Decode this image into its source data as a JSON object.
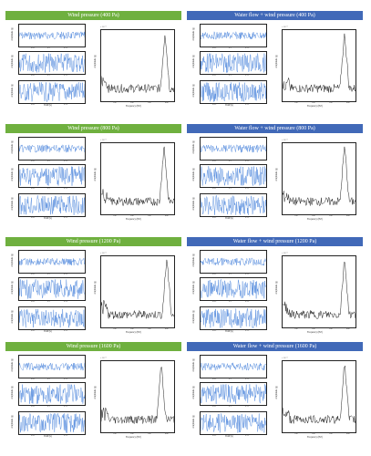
{
  "chart_data": [
    {
      "type": "line",
      "title": "Wind pressure (400 Pa)",
      "peak_frequency_hz": 350,
      "time_xticks": [
        "0.05",
        "0.1",
        "0.15"
      ],
      "time_xlabel": "Time (s)",
      "amp_ylabel": "Amplitude (g)",
      "spec_ylabel": "Amplitude (g)",
      "spec_xlabel": "Frequency (HZ)",
      "spec_xticks": [
        "100",
        "200",
        "300",
        "400"
      ],
      "spec_multiplier": "× 10⁻³"
    },
    {
      "type": "line",
      "title": "Water flow + wind pressure (400 Pa)",
      "peak_frequency_hz": 340,
      "time_xticks": [
        "0.05",
        "0.1",
        "0.15"
      ],
      "time_xlabel": "Time (s)",
      "amp_ylabel": "Amplitude (g)",
      "spec_ylabel": "Amplitude (g)",
      "spec_xlabel": "Frequency (HZ)",
      "spec_xticks": [
        "100",
        "200",
        "300",
        "400"
      ],
      "spec_multiplier": "× 10⁻³"
    },
    {
      "type": "line",
      "title": "Wind pressure (800 Pa)",
      "peak_frequency_hz": 345,
      "time_xticks": [
        "0.05",
        "0.1",
        "0.15"
      ],
      "time_xlabel": "Time (s)",
      "amp_ylabel": "Amplitude (g)",
      "spec_ylabel": "Amplitude (g)",
      "spec_xlabel": "Frequency (HZ)",
      "spec_xticks": [
        "100",
        "200",
        "300",
        "400"
      ],
      "spec_multiplier": "× 10⁻³"
    },
    {
      "type": "line",
      "title": "Water flow + wind pressure (800 Pa)",
      "peak_frequency_hz": 340,
      "time_xticks": [
        "0.05",
        "0.1",
        "0.15"
      ],
      "time_xlabel": "Time (s)",
      "amp_ylabel": "Amplitude (g)",
      "spec_ylabel": "Amplitude (g)",
      "spec_xlabel": "Frequency (HZ)",
      "spec_xticks": [
        "100",
        "200",
        "300",
        "400"
      ],
      "spec_multiplier": "× 10⁻³"
    },
    {
      "type": "line",
      "title": "Wind pressure (1200 Pa)",
      "peak_frequency_hz": 360,
      "time_xticks": [
        "0.05",
        "0.1",
        "0.15"
      ],
      "time_xlabel": "Time (s)",
      "amp_ylabel": "Amplitude (g)",
      "spec_ylabel": "Amplitude (g)",
      "spec_xlabel": "Frequency (HZ)",
      "spec_xticks": [
        "100",
        "200",
        "300",
        "400"
      ],
      "spec_multiplier": "× 10⁻³"
    },
    {
      "type": "line",
      "title": "Water flow + wind pressure (1200 Pa)",
      "peak_frequency_hz": 340,
      "time_xticks": [
        "0.05",
        "0.1",
        "0.15"
      ],
      "time_xlabel": "Time (s)",
      "amp_ylabel": "Amplitude (g)",
      "spec_ylabel": "Amplitude (g)",
      "spec_xlabel": "Frequency (HZ)",
      "spec_xticks": [
        "100",
        "200",
        "300",
        "400"
      ],
      "spec_multiplier": "× 10⁻³"
    },
    {
      "type": "line",
      "title": "Wind pressure (1600 Pa)",
      "peak_frequency_hz": 330,
      "time_xticks": [
        "0.05",
        "0.1",
        "0.15"
      ],
      "time_xlabel": "Time (s)",
      "amp_ylabel": "Amplitude (g)",
      "spec_ylabel": "Amplitude (g)",
      "spec_xlabel": "Frequency (HZ)",
      "spec_xticks": [
        "100",
        "200",
        "300",
        "400"
      ],
      "spec_multiplier": "× 10⁻³"
    },
    {
      "type": "line",
      "title": "Water flow + wind pressure (1600 Pa)",
      "peak_frequency_hz": 340,
      "time_xticks": [
        "0.05",
        "0.1",
        "0.15"
      ],
      "time_xlabel": "Time (s)",
      "amp_ylabel": "Amplitude (g)",
      "spec_ylabel": "Amplitude (g)",
      "spec_xlabel": "Frequency (HZ)",
      "spec_xticks": [
        "100",
        "200",
        "300",
        "400"
      ],
      "spec_multiplier": "× 10⁻³"
    }
  ],
  "colors": {
    "green_header": "#6fb03f",
    "blue_header": "#4169b8",
    "signal": "#3b7ad8",
    "spectrum": "#222222"
  }
}
